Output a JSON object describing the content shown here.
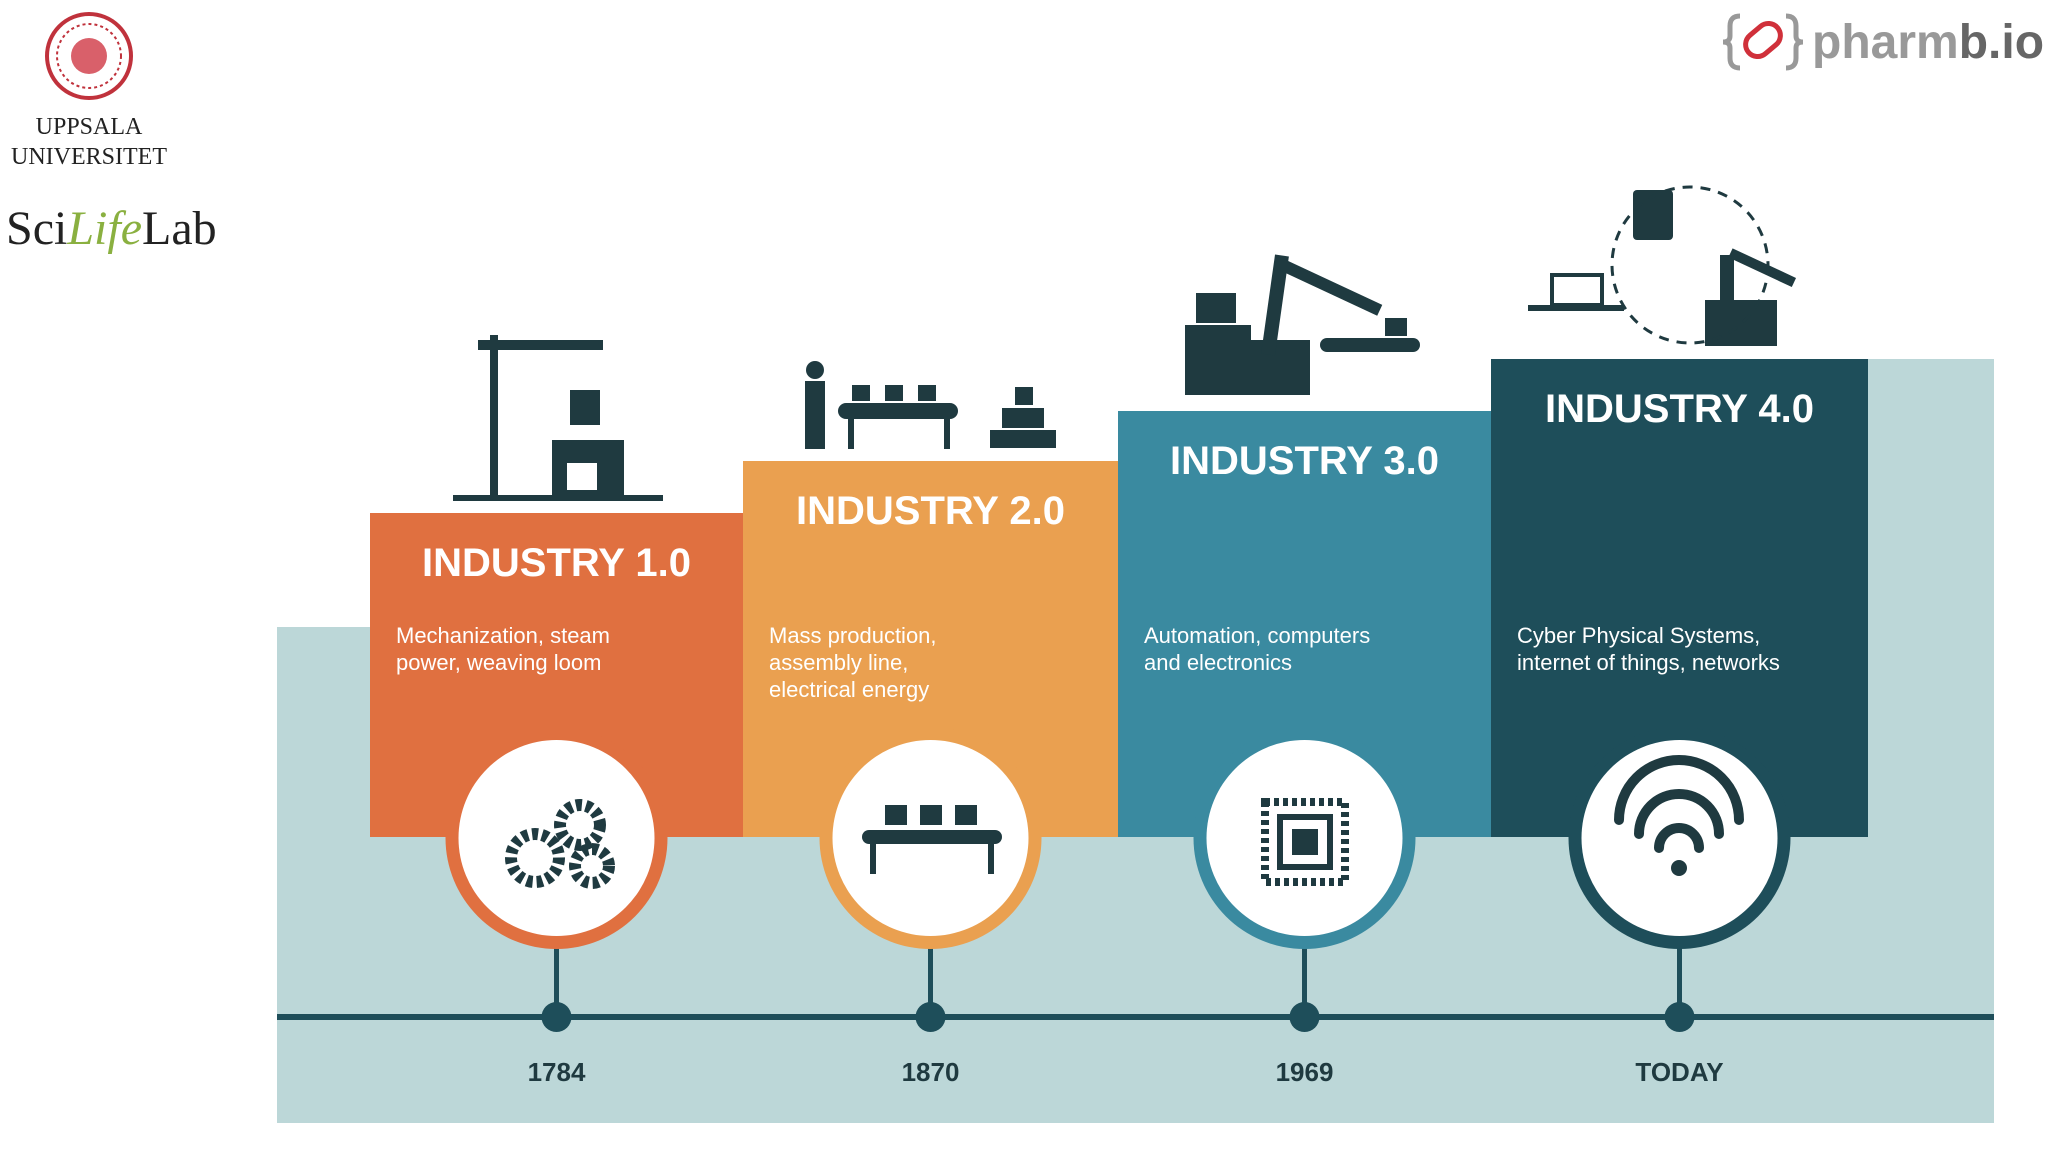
{
  "header": {
    "uppsala": {
      "line1": "UPPSALA",
      "line2": "UNIVERSITET"
    },
    "scilifelab": {
      "part1": "Sci",
      "part2": "Life",
      "part3": "Lab"
    },
    "pharmbio": {
      "part1": "pharm",
      "part2": "b.io"
    }
  },
  "stages": [
    {
      "title": "INDUSTRY 1.0",
      "description": [
        "Mechanization, steam",
        "power, weaving loom"
      ],
      "year": "1784"
    },
    {
      "title": "INDUSTRY 2.0",
      "description": [
        "Mass production,",
        "assembly line,",
        "electrical energy"
      ],
      "year": "1870"
    },
    {
      "title": "INDUSTRY 3.0",
      "description": [
        "Automation, computers",
        "and electronics"
      ],
      "year": "1969"
    },
    {
      "title": "INDUSTRY 4.0",
      "description": [
        "Cyber Physical Systems,",
        "internet of things, networks"
      ],
      "year": "TODAY"
    }
  ]
}
